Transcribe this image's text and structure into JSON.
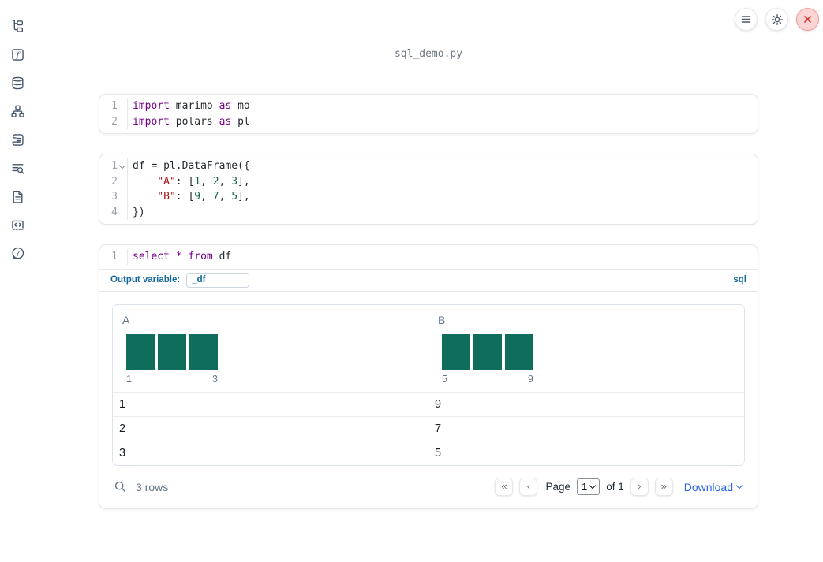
{
  "app": {
    "title": "sql_demo.py"
  },
  "colors": {
    "accent_blue": "#15689e",
    "link_blue": "#2563eb",
    "bar_green": "#0e6e5b",
    "keyword_purple": "#770088",
    "string_red": "#aa1111",
    "number_green": "#116644",
    "sidebar_icon": "#44546a"
  },
  "sidebar": {
    "items": [
      {
        "name": "file-explorer",
        "icon": "file-tree-icon"
      },
      {
        "name": "functions",
        "icon": "function-square-icon"
      },
      {
        "name": "data-sources",
        "icon": "database-icon"
      },
      {
        "name": "dependencies",
        "icon": "dependency-graph-icon"
      },
      {
        "name": "scratchpad",
        "icon": "scroll-icon"
      },
      {
        "name": "logs",
        "icon": "list-search-icon"
      },
      {
        "name": "documentation",
        "icon": "document-icon"
      },
      {
        "name": "snippets",
        "icon": "code-box-icon"
      },
      {
        "name": "help",
        "icon": "help-bubble-icon"
      }
    ]
  },
  "topbar": {
    "buttons": [
      {
        "name": "menu",
        "icon": "hamburger-icon"
      },
      {
        "name": "settings",
        "icon": "gear-icon"
      },
      {
        "name": "shutdown",
        "icon": "close-x-icon"
      }
    ]
  },
  "cells": [
    {
      "lines": [
        {
          "n": "1",
          "tokens": [
            {
              "t": "kw",
              "v": "import"
            },
            {
              "t": "pl",
              "v": " marimo "
            },
            {
              "t": "kw",
              "v": "as"
            },
            {
              "t": "pl",
              "v": " mo"
            }
          ]
        },
        {
          "n": "2",
          "tokens": [
            {
              "t": "kw",
              "v": "import"
            },
            {
              "t": "pl",
              "v": " polars "
            },
            {
              "t": "kw",
              "v": "as"
            },
            {
              "t": "pl",
              "v": " pl"
            }
          ]
        }
      ]
    },
    {
      "lines": [
        {
          "n": "1",
          "fold": true,
          "tokens": [
            {
              "t": "pl",
              "v": "df = pl.DataFrame({"
            }
          ]
        },
        {
          "n": "2",
          "tokens": [
            {
              "t": "pl",
              "v": "    "
            },
            {
              "t": "str",
              "v": "\"A\""
            },
            {
              "t": "pl",
              "v": ": ["
            },
            {
              "t": "num",
              "v": "1"
            },
            {
              "t": "pl",
              "v": ", "
            },
            {
              "t": "num",
              "v": "2"
            },
            {
              "t": "pl",
              "v": ", "
            },
            {
              "t": "num",
              "v": "3"
            },
            {
              "t": "pl",
              "v": "],"
            }
          ]
        },
        {
          "n": "3",
          "tokens": [
            {
              "t": "pl",
              "v": "    "
            },
            {
              "t": "str",
              "v": "\"B\""
            },
            {
              "t": "pl",
              "v": ": ["
            },
            {
              "t": "num",
              "v": "9"
            },
            {
              "t": "pl",
              "v": ", "
            },
            {
              "t": "num",
              "v": "7"
            },
            {
              "t": "pl",
              "v": ", "
            },
            {
              "t": "num",
              "v": "5"
            },
            {
              "t": "pl",
              "v": "],"
            }
          ]
        },
        {
          "n": "4",
          "tokens": [
            {
              "t": "pl",
              "v": "})"
            }
          ]
        }
      ]
    },
    {
      "lines": [
        {
          "n": "1",
          "tokens": [
            {
              "t": "kw",
              "v": "select"
            },
            {
              "t": "pl",
              "v": " "
            },
            {
              "t": "kw",
              "v": "*"
            },
            {
              "t": "pl",
              "v": " "
            },
            {
              "t": "kw",
              "v": "from"
            },
            {
              "t": "pl",
              "v": " df"
            }
          ]
        }
      ],
      "output_variable_label": "Output variable:",
      "output_variable_value": "_df",
      "language_badge": "sql"
    }
  ],
  "table": {
    "columns": [
      {
        "name": "A",
        "hist": {
          "counts": [
            1,
            1,
            1
          ],
          "min_label": "1",
          "max_label": "3"
        }
      },
      {
        "name": "B",
        "hist": {
          "counts": [
            1,
            1,
            1
          ],
          "min_label": "5",
          "max_label": "9"
        }
      }
    ],
    "rows": [
      [
        "1",
        "9"
      ],
      [
        "2",
        "7"
      ],
      [
        "3",
        "5"
      ]
    ],
    "footer": {
      "row_count": "3 rows",
      "pagination": {
        "first": "«",
        "prev": "‹",
        "next": "›",
        "last": "»",
        "page_label": "Page",
        "page_value": "1",
        "of_label": "of 1"
      },
      "download_label": "Download"
    }
  }
}
